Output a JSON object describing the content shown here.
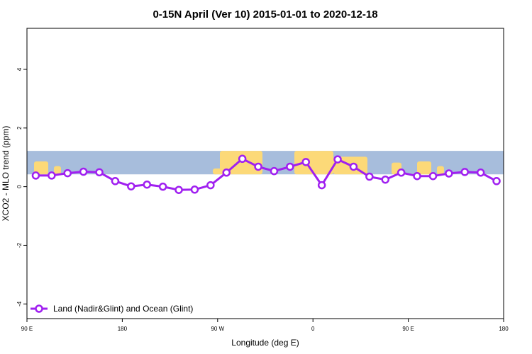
{
  "chart_data": {
    "type": "line",
    "title": "0-15N April (Ver 10)   2015-01-01 to 2020-12-18",
    "xlabel": "Longitude (deg E)",
    "ylabel": "XCO2 - MLO trend (ppm)",
    "xlim": [
      -90,
      180
    ],
    "ylim": [
      -4.5,
      5.4
    ],
    "x_ticks": [
      {
        "value": -90,
        "label": "90 E"
      },
      {
        "value": -36,
        "label": "180"
      },
      {
        "value": 18,
        "label": "90 W"
      },
      {
        "value": 72,
        "label": "0"
      },
      {
        "value": 126,
        "label": "90 E"
      },
      {
        "value": 180,
        "label": "180"
      }
    ],
    "y_ticks": [
      -4,
      -2,
      0,
      2,
      4
    ],
    "grid": false,
    "legend_position": "bottom-left",
    "map_band": {
      "ymin": 0.42,
      "ymax": 1.22,
      "ocean_color": "#a7bddc",
      "land_color": "#fcd978"
    },
    "series": [
      {
        "name": "Land (Nadir&Glint) and Ocean (Glint)",
        "color": "#a020f0",
        "x": [
          -85,
          -76,
          -67,
          -58,
          -49,
          -40,
          -31,
          -22,
          -13,
          -4,
          5,
          14,
          23,
          32,
          41,
          50,
          59,
          68,
          77,
          86,
          95,
          104,
          113,
          122,
          131,
          140,
          149,
          158,
          167,
          176
        ],
        "values": [
          0.38,
          0.38,
          0.46,
          0.51,
          0.49,
          0.19,
          0.01,
          0.07,
          0.0,
          -0.11,
          -0.1,
          0.05,
          0.48,
          0.95,
          0.68,
          0.53,
          0.68,
          0.84,
          0.05,
          0.93,
          0.68,
          0.34,
          0.24,
          0.48,
          0.36,
          0.36,
          0.45,
          0.5,
          0.48,
          0.19
        ]
      }
    ]
  }
}
